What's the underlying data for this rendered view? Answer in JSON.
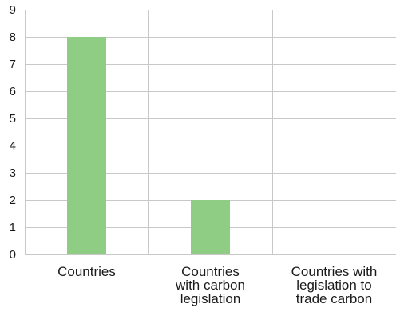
{
  "chart_data": {
    "type": "bar",
    "categories": [
      [
        "Countries"
      ],
      [
        "Countries",
        "with carbon",
        "legislation"
      ],
      [
        "Countries with",
        "legislation to",
        "trade carbon"
      ]
    ],
    "values": [
      8,
      2,
      0
    ],
    "ylim": [
      0,
      9
    ],
    "yticks": [
      0,
      1,
      2,
      3,
      4,
      5,
      6,
      7,
      8,
      9
    ],
    "grid": true,
    "bar_color": "#90cd84",
    "title": "",
    "xlabel": "",
    "ylabel": ""
  }
}
